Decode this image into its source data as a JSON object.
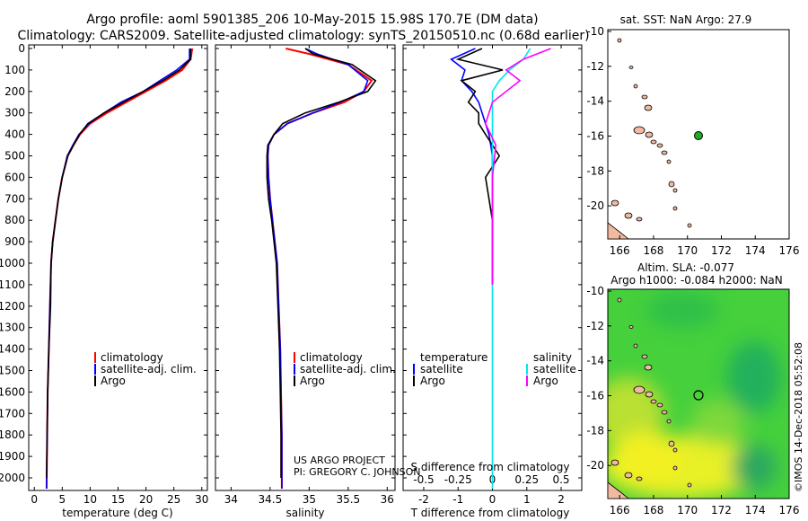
{
  "header": {
    "line1": "Argo profile: aoml 5901385_206 10-May-2015 15.98S 170.7E (DM data)",
    "line2": "Climatology: CARS2009. Satellite-adjusted climatology: synTS_20150510.nc (0.68d earlier)"
  },
  "colors": {
    "climatology": "#ff0000",
    "satellite": "#0000ff",
    "argo": "#000000",
    "salinity_sat": "#00e5ee",
    "salinity_argo": "#ff00ff",
    "land": "#f0b9a0",
    "marker": "#22aa22"
  },
  "depth_axis": {
    "ticks": [
      0,
      100,
      200,
      300,
      400,
      500,
      600,
      700,
      800,
      900,
      1000,
      1100,
      1200,
      1300,
      1400,
      1500,
      1600,
      1700,
      1800,
      1900,
      2000
    ]
  },
  "panels": {
    "temperature": {
      "xlabel": "temperature (deg C)",
      "xticks": [
        "0",
        "5",
        "10",
        "15",
        "20",
        "25",
        "30"
      ]
    },
    "salinity": {
      "xlabel": "salinity",
      "xticks": [
        "34",
        "34.5",
        "35",
        "35.5",
        "36"
      ]
    },
    "difference": {
      "xlabel": "T difference from climatology",
      "xlabel_top": "S difference from climatology",
      "xticks_T": [
        "-2",
        "-1",
        "0",
        "1",
        "2"
      ],
      "xticks_S": [
        "-0.5",
        "-0.25",
        "0",
        "0.25",
        "0.5"
      ]
    }
  },
  "legends": {
    "temperature": [
      "climatology",
      "satellite-adj. clim.",
      "Argo"
    ],
    "salinity": [
      "climatology",
      "satellite-adj. clim.",
      "Argo"
    ],
    "difference_left_title": "temperature",
    "difference_right_title": "salinity",
    "difference_items": [
      "satellite",
      "Argo"
    ]
  },
  "credit": {
    "line1": "US ARGO PROJECT",
    "line2": "PI: GREGORY C. JOHNSON"
  },
  "map_top": {
    "title": "sat. SST: NaN Argo: 27.9",
    "yticks": [
      "-10",
      "-12",
      "-14",
      "-16",
      "-18",
      "-20"
    ],
    "xticks": [
      "166",
      "168",
      "170",
      "172",
      "174",
      "176"
    ],
    "float_lon": 170.7,
    "float_lat": -15.98
  },
  "map_bottom": {
    "title1": "Altim. SLA: -0.077",
    "title2": "Argo h1000: -0.084 h2000: NaN",
    "yticks": [
      "-10",
      "-12",
      "-14",
      "-16",
      "-18",
      "-20"
    ],
    "xticks": [
      "166",
      "168",
      "170",
      "172",
      "174",
      "176"
    ]
  },
  "watermark": "©IMOS 14-Dec-2018 05:52:08",
  "chart_data": [
    {
      "type": "line",
      "title": "",
      "xlabel": "temperature (deg C)",
      "ylabel": "",
      "xlim": [
        -1,
        31
      ],
      "ylim": [
        2050,
        0
      ],
      "series": [
        {
          "name": "climatology",
          "color": "#ff0000",
          "x": [
            28.3,
            28.0,
            26.5,
            23.5,
            20.0,
            16.5,
            13.0,
            10.0,
            8.2,
            7.0,
            6.0,
            5.0,
            4.3,
            3.8,
            3.3,
            3.0,
            2.8,
            2.6,
            2.4,
            2.3,
            2.2
          ],
          "y": [
            0,
            50,
            100,
            150,
            200,
            250,
            300,
            350,
            400,
            450,
            500,
            600,
            700,
            800,
            900,
            1000,
            1200,
            1400,
            1600,
            1800,
            2050
          ]
        },
        {
          "name": "satellite-adj. clim.",
          "color": "#0000ff",
          "x": [
            27.8,
            27.8,
            25.5,
            22.5,
            19.5,
            15.5,
            12.5,
            9.8,
            8.0,
            6.9,
            5.9,
            5.0,
            4.3,
            3.8,
            3.3,
            3.0,
            2.8,
            2.6,
            2.4,
            2.3,
            2.2
          ],
          "y": [
            0,
            50,
            100,
            150,
            200,
            250,
            300,
            350,
            400,
            450,
            500,
            600,
            700,
            800,
            900,
            1000,
            1200,
            1400,
            1600,
            1800,
            2050
          ]
        },
        {
          "name": "Argo",
          "color": "#000000",
          "x": [
            28.0,
            28.0,
            26.0,
            23.0,
            19.5,
            16.0,
            12.5,
            9.6,
            8.1,
            7.0,
            6.0,
            5.0,
            4.3,
            3.8,
            3.3,
            3.0,
            2.9,
            2.6,
            2.4,
            2.3,
            2.2
          ],
          "y": [
            0,
            50,
            100,
            150,
            200,
            250,
            300,
            350,
            400,
            450,
            500,
            600,
            700,
            800,
            900,
            1000,
            1200,
            1400,
            1600,
            1800,
            2000
          ]
        }
      ]
    },
    {
      "type": "line",
      "title": "",
      "xlabel": "salinity",
      "ylabel": "",
      "xlim": [
        33.8,
        36.1
      ],
      "ylim": [
        2050,
        0
      ],
      "series": [
        {
          "name": "climatology",
          "color": "#ff0000",
          "x": [
            34.7,
            35.0,
            35.5,
            35.8,
            35.7,
            35.45,
            35.05,
            34.72,
            34.55,
            34.48,
            34.47,
            34.48,
            34.5,
            34.53,
            34.56,
            34.59,
            34.61,
            34.63,
            34.64,
            34.65,
            34.65
          ],
          "y": [
            0,
            25,
            75,
            150,
            200,
            250,
            300,
            350,
            400,
            450,
            500,
            600,
            700,
            800,
            900,
            1000,
            1200,
            1400,
            1600,
            1800,
            2050
          ]
        },
        {
          "name": "satellite-adj. clim.",
          "color": "#0000ff",
          "x": [
            34.95,
            35.1,
            35.5,
            35.75,
            35.7,
            35.4,
            35.05,
            34.72,
            34.55,
            34.48,
            34.47,
            34.48,
            34.5,
            34.53,
            34.56,
            34.59,
            34.61,
            34.63,
            34.64,
            34.65,
            34.65
          ],
          "y": [
            0,
            25,
            75,
            150,
            200,
            250,
            300,
            350,
            400,
            450,
            500,
            600,
            700,
            800,
            900,
            1000,
            1200,
            1400,
            1600,
            1800,
            2050
          ]
        },
        {
          "name": "Argo",
          "color": "#000000",
          "x": [
            34.95,
            35.05,
            35.55,
            35.85,
            35.75,
            35.38,
            34.95,
            34.66,
            34.55,
            34.47,
            34.46,
            34.46,
            34.48,
            34.52,
            34.55,
            34.58,
            34.6,
            34.62,
            34.63,
            34.64,
            34.64
          ],
          "y": [
            0,
            25,
            75,
            150,
            200,
            250,
            300,
            350,
            400,
            450,
            500,
            600,
            700,
            800,
            900,
            1000,
            1200,
            1400,
            1600,
            1800,
            2000
          ]
        }
      ]
    },
    {
      "type": "line",
      "title": "",
      "xlabel": "T difference from climatology",
      "ylabel": "",
      "xlim": [
        -2.6,
        2.6
      ],
      "ylim": [
        2050,
        0
      ],
      "series": [
        {
          "name": "satellite",
          "color": "#0000ff",
          "x": [
            -0.5,
            -1.2,
            -0.8,
            -0.9,
            -0.6,
            -0.4,
            -0.3,
            -0.2,
            -0.1,
            0,
            0,
            0,
            0
          ],
          "y": [
            0,
            50,
            100,
            150,
            200,
            250,
            300,
            350,
            400,
            500,
            600,
            800,
            1100
          ]
        },
        {
          "name": "Argo",
          "color": "#000000",
          "x": [
            -0.3,
            -1.0,
            0.3,
            -0.9,
            -0.5,
            -0.7,
            -0.4,
            -0.4,
            -0.2,
            0.2,
            -0.2,
            0,
            0
          ],
          "y": [
            0,
            50,
            100,
            150,
            200,
            250,
            300,
            350,
            400,
            500,
            600,
            800,
            1100
          ]
        },
        {
          "name": "satellite",
          "color": "#00e5ee",
          "x": [
            1.1,
            0.9,
            0.5,
            0.2,
            0,
            0,
            0,
            0,
            0,
            0,
            0,
            0
          ],
          "y": [
            0,
            50,
            100,
            150,
            200,
            300,
            400,
            600,
            800,
            1200,
            1600,
            2050
          ]
        },
        {
          "name": "Argo",
          "color": "#ff00ff",
          "x": [
            1.7,
            0.9,
            0.4,
            0.8,
            0,
            -0.2,
            0.1,
            0,
            0,
            0,
            0
          ],
          "y": [
            0,
            50,
            100,
            150,
            250,
            350,
            450,
            600,
            800,
            1000,
            1100
          ]
        }
      ]
    }
  ]
}
